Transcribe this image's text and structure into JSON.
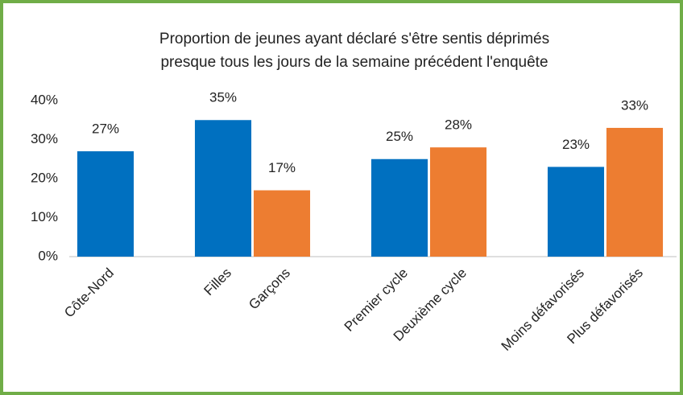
{
  "chart_data": {
    "type": "bar",
    "title": [
      "Proportion de jeunes ayant déclaré s'être sentis déprimés",
      "presque tous les jours de la semaine précédent l'enquête"
    ],
    "categories": [
      "Côte-Nord",
      null,
      "Filles",
      "Garçons",
      null,
      "Premier cycle",
      "Deuxième cycle",
      null,
      "Moins défavorisés",
      "Plus défavorisés"
    ],
    "values": [
      27,
      null,
      35,
      17,
      null,
      25,
      28,
      null,
      23,
      33
    ],
    "value_labels": [
      "27%",
      null,
      "35%",
      "17%",
      null,
      "25%",
      "28%",
      null,
      "23%",
      "33%"
    ],
    "colors": [
      "#0070c0",
      null,
      "#0070c0",
      "#ed7d31",
      null,
      "#0070c0",
      "#ed7d31",
      null,
      "#0070c0",
      "#ed7d31"
    ],
    "ylim": [
      0,
      40
    ],
    "yticks": [
      {
        "value": 0,
        "label": "0%"
      },
      {
        "value": 10,
        "label": "10%"
      },
      {
        "value": 20,
        "label": "20%"
      },
      {
        "value": 30,
        "label": "30%"
      },
      {
        "value": 40,
        "label": "40%"
      }
    ],
    "grid": false
  }
}
